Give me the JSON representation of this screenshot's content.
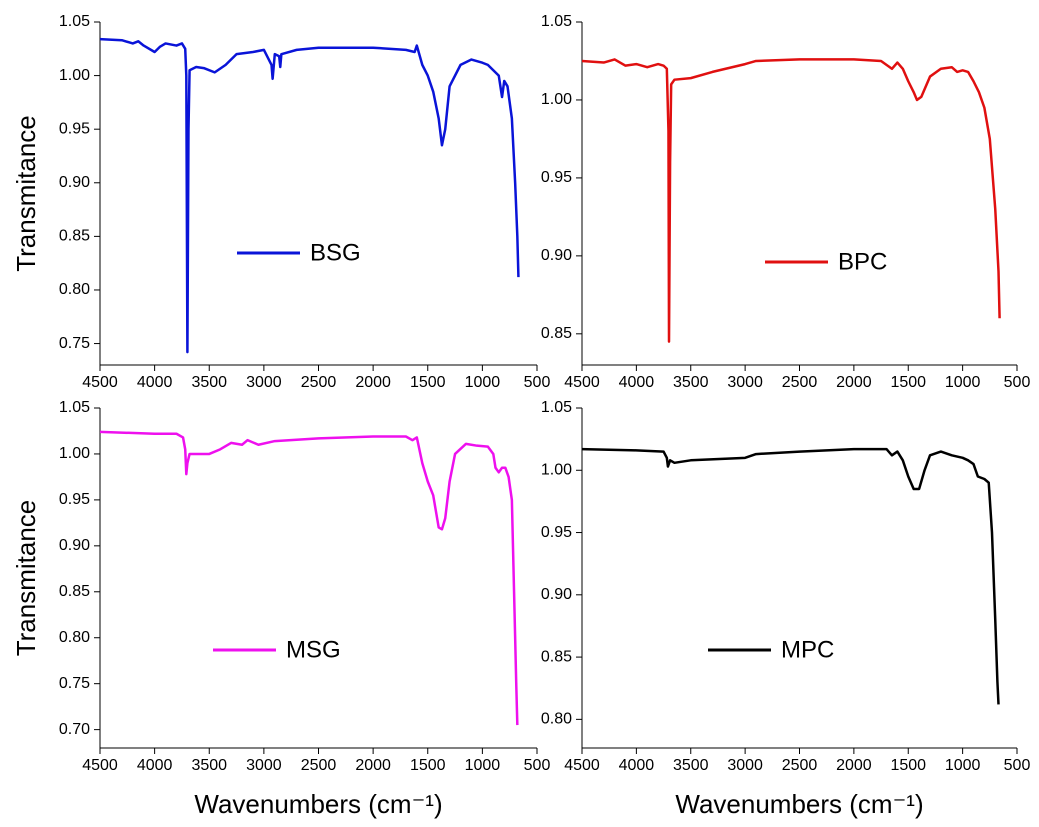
{
  "chart_data": [
    {
      "type": "line",
      "ylabel": "Transmitance",
      "xlim": [
        4500,
        500
      ],
      "xticks": [
        4500,
        4000,
        3500,
        3000,
        2500,
        2000,
        1500,
        1000,
        500
      ],
      "ylim": [
        0.73,
        1.05
      ],
      "yticks": [
        1.05,
        {
          "value": 1,
          "label": "1.00"
        },
        0.95,
        {
          "value": 0.9,
          "label": "0.90"
        },
        0.85,
        {
          "value": 0.8,
          "label": "0.80"
        },
        0.75
      ],
      "x": [
        4500,
        4300,
        4200,
        4150,
        4100,
        4000,
        3950,
        3900,
        3800,
        3750,
        3720,
        3710,
        3700,
        3690,
        3680,
        3620,
        3550,
        3450,
        3350,
        3250,
        3100,
        3000,
        2930,
        2920,
        2900,
        2860,
        2850,
        2840,
        2700,
        2500,
        2000,
        1700,
        1620,
        1600,
        1550,
        1500,
        1450,
        1400,
        1370,
        1340,
        1300,
        1200,
        1100,
        1000,
        950,
        900,
        850,
        820,
        800,
        770,
        730,
        700,
        680,
        670
      ],
      "series": [
        {
          "name": "BSG",
          "color": "#0a14d8",
          "values": [
            1.034,
            1.033,
            1.03,
            1.032,
            1.028,
            1.022,
            1.027,
            1.03,
            1.028,
            1.03,
            1.025,
            1.0,
            0.742,
            0.95,
            1.005,
            1.008,
            1.007,
            1.003,
            1.01,
            1.02,
            1.022,
            1.024,
            1.01,
            0.997,
            1.02,
            1.018,
            1.008,
            1.02,
            1.024,
            1.026,
            1.026,
            1.024,
            1.022,
            1.028,
            1.01,
            1.0,
            0.985,
            0.96,
            0.935,
            0.95,
            0.99,
            1.01,
            1.015,
            1.012,
            1.01,
            1.005,
            1.0,
            0.98,
            0.995,
            0.99,
            0.96,
            0.9,
            0.85,
            0.812
          ]
        }
      ]
    },
    {
      "type": "line",
      "xlim": [
        4500,
        500
      ],
      "xticks": [
        4500,
        4000,
        3500,
        3000,
        2500,
        2000,
        1500,
        1000,
        500
      ],
      "ylim": [
        0.83,
        1.05
      ],
      "yticks": [
        1.05,
        {
          "value": 1,
          "label": "1.00"
        },
        0.95,
        {
          "value": 0.9,
          "label": "0.90"
        },
        0.85
      ],
      "x": [
        4500,
        4300,
        4200,
        4100,
        4000,
        3900,
        3800,
        3750,
        3720,
        3705,
        3700,
        3690,
        3680,
        3650,
        3500,
        3300,
        3000,
        2900,
        2500,
        2000,
        1750,
        1650,
        1600,
        1550,
        1500,
        1450,
        1420,
        1380,
        1300,
        1200,
        1100,
        1050,
        1000,
        950,
        900,
        850,
        800,
        750,
        700,
        670,
        660
      ],
      "series": [
        {
          "name": "BPC",
          "color": "#e01010",
          "values": [
            1.025,
            1.024,
            1.026,
            1.022,
            1.023,
            1.021,
            1.023,
            1.022,
            1.02,
            0.98,
            0.845,
            0.96,
            1.01,
            1.013,
            1.014,
            1.018,
            1.023,
            1.025,
            1.026,
            1.026,
            1.025,
            1.02,
            1.024,
            1.02,
            1.012,
            1.005,
            1.0,
            1.002,
            1.015,
            1.02,
            1.021,
            1.018,
            1.019,
            1.018,
            1.012,
            1.005,
            0.995,
            0.975,
            0.93,
            0.89,
            0.86
          ]
        }
      ]
    },
    {
      "type": "line",
      "ylabel": "Transmitance",
      "xlabel": "Wavenumbers (cm⁻¹)",
      "xlim": [
        4500,
        500
      ],
      "xticks": [
        4500,
        4000,
        3500,
        3000,
        2500,
        2000,
        1500,
        1000,
        500
      ],
      "ylim": [
        0.68,
        1.05
      ],
      "yticks": [
        1.05,
        {
          "value": 1,
          "label": "1.00"
        },
        0.95,
        {
          "value": 0.9,
          "label": "0.90"
        },
        0.85,
        {
          "value": 0.8,
          "label": "0.80"
        },
        0.75,
        {
          "value": 0.7,
          "label": "0.70"
        }
      ],
      "x": [
        4500,
        4000,
        3800,
        3740,
        3720,
        3710,
        3700,
        3680,
        3600,
        3500,
        3400,
        3300,
        3200,
        3150,
        3050,
        2900,
        2500,
        2000,
        1700,
        1640,
        1600,
        1550,
        1500,
        1450,
        1400,
        1370,
        1340,
        1300,
        1250,
        1150,
        1050,
        950,
        900,
        880,
        850,
        820,
        790,
        760,
        730,
        710,
        690,
        680
      ],
      "series": [
        {
          "name": "MSG",
          "color": "#ee10ee",
          "values": [
            1.024,
            1.022,
            1.022,
            1.018,
            1.005,
            0.978,
            0.99,
            1.0,
            1.0,
            1.0,
            1.005,
            1.012,
            1.01,
            1.015,
            1.01,
            1.014,
            1.017,
            1.019,
            1.019,
            1.015,
            1.018,
            0.99,
            0.97,
            0.955,
            0.92,
            0.918,
            0.93,
            0.97,
            1.0,
            1.011,
            1.009,
            1.008,
            1.0,
            0.985,
            0.98,
            0.985,
            0.985,
            0.975,
            0.95,
            0.85,
            0.75,
            0.705
          ]
        }
      ]
    },
    {
      "type": "line",
      "xlabel": "Wavenumbers (cm⁻¹)",
      "xlim": [
        4500,
        500
      ],
      "xticks": [
        4500,
        4000,
        3500,
        3000,
        2500,
        2000,
        1500,
        1000,
        500
      ],
      "ylim": [
        0.777,
        1.05
      ],
      "yticks": [
        1.05,
        {
          "value": 1,
          "label": "1.00"
        },
        0.95,
        {
          "value": 0.9,
          "label": "0.90"
        },
        0.85,
        {
          "value": 0.8,
          "label": "0.80"
        }
      ],
      "x": [
        4500,
        4000,
        3750,
        3720,
        3710,
        3690,
        3650,
        3500,
        3000,
        2900,
        2500,
        2000,
        1700,
        1650,
        1600,
        1550,
        1500,
        1450,
        1400,
        1350,
        1300,
        1200,
        1100,
        1000,
        950,
        900,
        860,
        800,
        760,
        730,
        700,
        680,
        670
      ],
      "series": [
        {
          "name": "MPC",
          "color": "#000000",
          "values": [
            1.017,
            1.016,
            1.015,
            1.01,
            1.003,
            1.008,
            1.006,
            1.008,
            1.01,
            1.013,
            1.015,
            1.017,
            1.017,
            1.012,
            1.015,
            1.008,
            0.995,
            0.985,
            0.985,
            1.0,
            1.012,
            1.015,
            1.012,
            1.01,
            1.008,
            1.005,
            0.995,
            0.993,
            0.99,
            0.95,
            0.88,
            0.83,
            0.812
          ]
        }
      ]
    }
  ]
}
